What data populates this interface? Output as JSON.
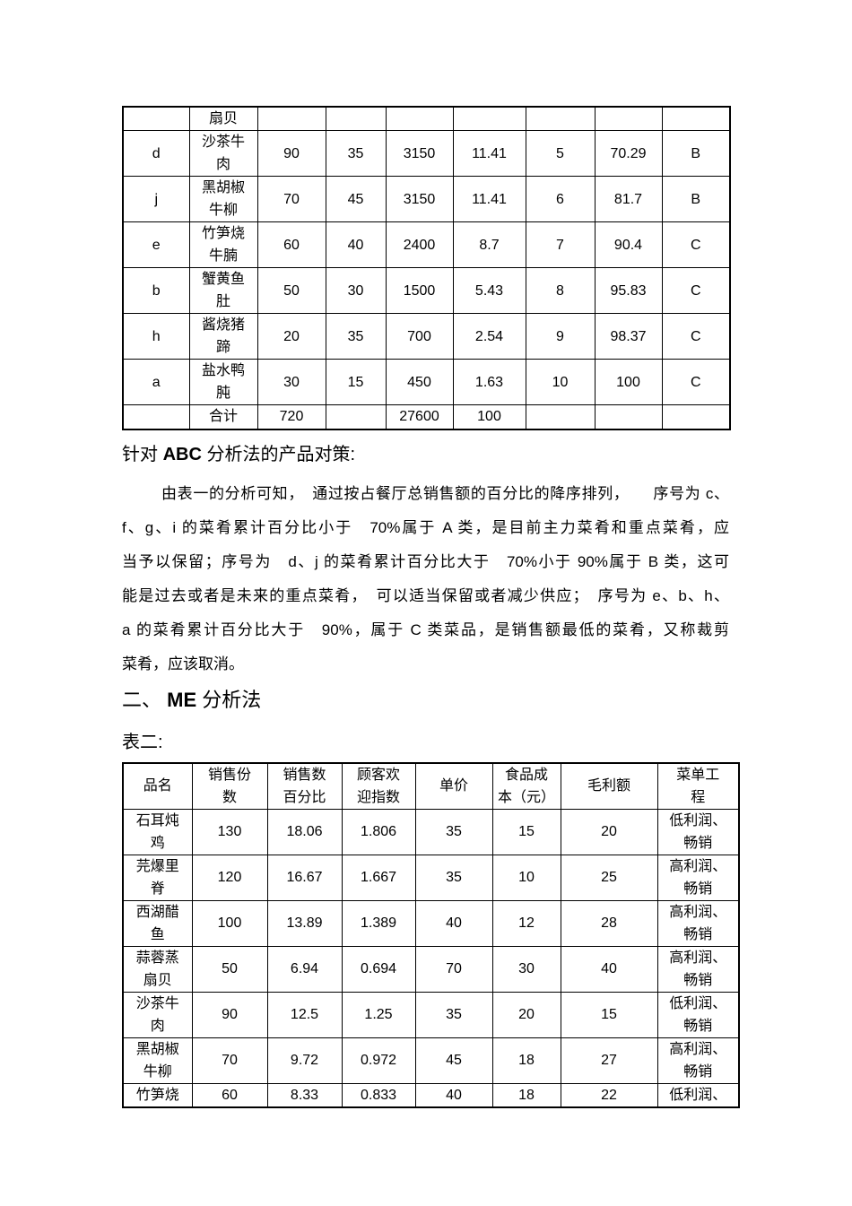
{
  "colors": {
    "page_background": "#ffffff",
    "text": "#000000",
    "table_border": "#000000"
  },
  "table1": {
    "rows": [
      [
        "",
        "扇贝",
        "",
        "",
        "",
        "",
        "",
        "",
        ""
      ],
      [
        "d",
        "沙茶牛\n肉",
        "90",
        "35",
        "3150",
        "11.41",
        "5",
        "70.29",
        "B"
      ],
      [
        "j",
        "黑胡椒\n牛柳",
        "70",
        "45",
        "3150",
        "11.41",
        "6",
        "81.7",
        "B"
      ],
      [
        "e",
        "竹笋烧\n牛腩",
        "60",
        "40",
        "2400",
        "8.7",
        "7",
        "90.4",
        "C"
      ],
      [
        "b",
        "蟹黄鱼\n肚",
        "50",
        "30",
        "1500",
        "5.43",
        "8",
        "95.83",
        "C"
      ],
      [
        "h",
        "酱烧猪\n蹄",
        "20",
        "35",
        "700",
        "2.54",
        "9",
        "98.37",
        "C"
      ],
      [
        "a",
        "盐水鸭\n肫",
        "30",
        "15",
        "450",
        "1.63",
        "10",
        "100",
        "C"
      ],
      [
        "",
        "合计",
        "720",
        "",
        "27600",
        "100",
        "",
        "",
        ""
      ]
    ]
  },
  "abc_section": {
    "heading": {
      "prefix": "针对 ",
      "bold": "ABC",
      "suffix": " 分析法的产品对策:"
    },
    "lines": [
      "由表一的分析可知，　通过按占餐厅总销售额的百分比的降序排列，　　序号为 c、",
      "f、g、i 的菜肴累计百分比小于　70%属于 A 类，是目前主力菜肴和重点菜肴，应",
      "当予以保留；序号为　d、j 的菜肴累计百分比大于　70%小于 90%属于 B 类，这可",
      "能是过去或者是未来的重点菜肴，　可以适当保留或者减少供应；　序号为 e、b、h、",
      "a 的菜肴累计百分比大于　90%，属于 C 类菜品，是销售额最低的菜肴，又称裁剪",
      "菜肴，应该取消。"
    ]
  },
  "me_section": {
    "heading": {
      "prefix": "二、 ",
      "bold": "ME",
      "suffix": " 分析法"
    },
    "table_label": "表二:"
  },
  "table2": {
    "headers": [
      "品名",
      "销售份\n数",
      "销售数\n百分比",
      "顾客欢\n迎指数",
      "单价",
      "食品成\n本（元）",
      "毛利额",
      "菜单工\n程"
    ],
    "rows": [
      [
        "石耳炖\n鸡",
        "130",
        "18.06",
        "1.806",
        "35",
        "15",
        "20",
        "低利润、\n畅销"
      ],
      [
        "芫爆里\n脊",
        "120",
        "16.67",
        "1.667",
        "35",
        "10",
        "25",
        "高利润、\n畅销"
      ],
      [
        "西湖醋\n鱼",
        "100",
        "13.89",
        "1.389",
        "40",
        "12",
        "28",
        "高利润、\n畅销"
      ],
      [
        "蒜蓉蒸\n扇贝",
        "50",
        "6.94",
        "0.694",
        "70",
        "30",
        "40",
        "高利润、\n畅销"
      ],
      [
        "沙茶牛\n肉",
        "90",
        "12.5",
        "1.25",
        "35",
        "20",
        "15",
        "低利润、\n畅销"
      ],
      [
        "黑胡椒\n牛柳",
        "70",
        "9.72",
        "0.972",
        "45",
        "18",
        "27",
        "高利润、\n畅销"
      ],
      [
        "竹笋烧",
        "60",
        "8.33",
        "0.833",
        "40",
        "18",
        "22",
        "低利润、"
      ]
    ]
  }
}
